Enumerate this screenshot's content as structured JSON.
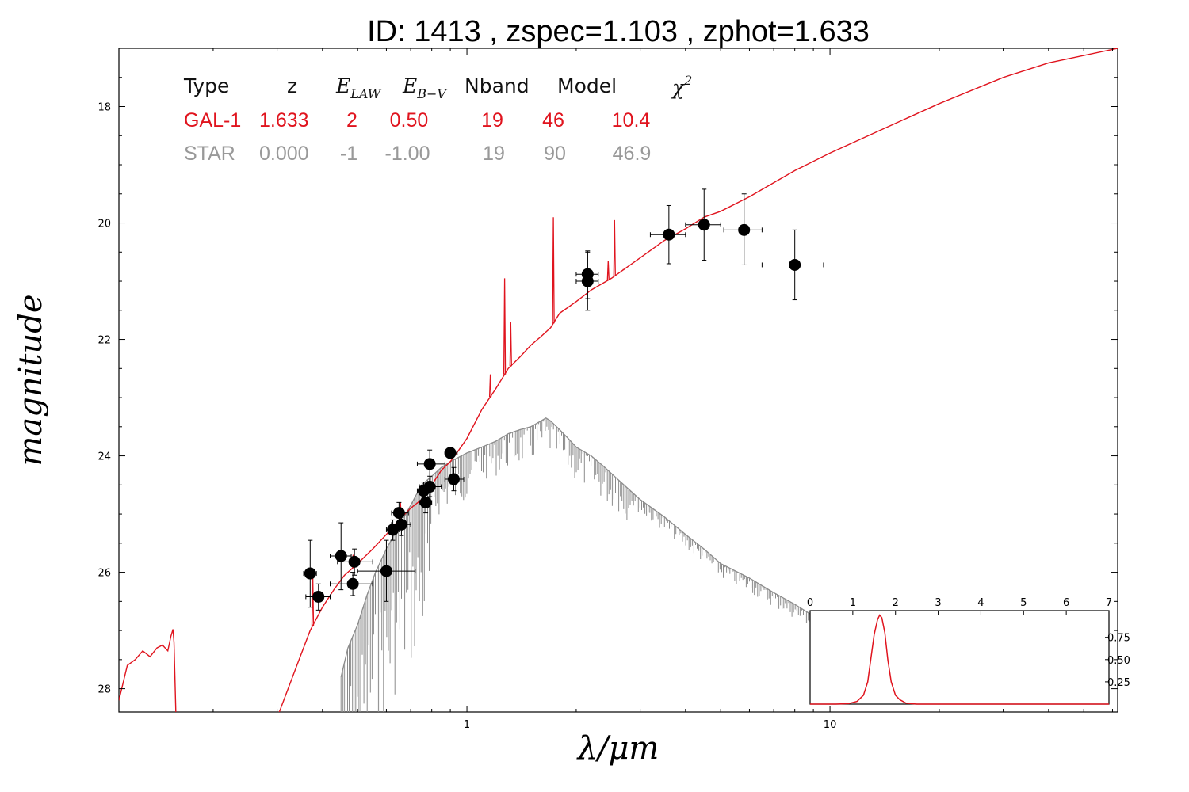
{
  "chart_data": {
    "type": "scatter",
    "title": "ID:  1413  , zspec=1.103 , zphot=1.633",
    "xlabel": "λ/μm",
    "ylabel": "magnitude",
    "xscale": "log",
    "xlim": [
      0.11,
      62
    ],
    "ylim": [
      28.4,
      17.0
    ],
    "y_inverted": true,
    "x_ticks": [
      "1",
      "10"
    ],
    "y_ticks": [
      "18",
      "20",
      "22",
      "24",
      "26",
      "28"
    ],
    "colors": {
      "galaxy": "#e0141e",
      "star": "#8c8c8c",
      "points": "#000000"
    },
    "fit_table": {
      "headers": {
        "type": "Type",
        "z": "z",
        "elaw_base": "E",
        "elaw_sub": "LAW",
        "ebv_base": "E",
        "ebv_sub": "B−V",
        "nband": "Nband",
        "model": "Model",
        "chi_base": "χ",
        "chi_sup": "2"
      },
      "rows": [
        {
          "type": "GAL-1",
          "z": "1.633",
          "elaw": "2",
          "ebv": "0.50",
          "nband": "19",
          "model": "46",
          "chi2": "10.4",
          "color": "#e0141e"
        },
        {
          "type": "STAR",
          "z": "0.000",
          "elaw": "-1",
          "ebv": "-1.00",
          "nband": "19",
          "model": "90",
          "chi2": "46.9",
          "color": "#999999"
        }
      ]
    },
    "photometry": [
      {
        "x": 0.37,
        "y": 26.02,
        "xerr": [
          0.355,
          0.385
        ],
        "yerr": [
          25.45,
          26.6
        ]
      },
      {
        "x": 0.39,
        "y": 26.42,
        "xerr": [
          0.36,
          0.42
        ],
        "yerr": [
          26.2,
          26.65
        ]
      },
      {
        "x": 0.45,
        "y": 25.72,
        "xerr": [
          0.42,
          0.48
        ],
        "yerr": [
          25.15,
          26.3
        ]
      },
      {
        "x": 0.49,
        "y": 25.82,
        "xerr": [
          0.44,
          0.55
        ],
        "yerr": [
          25.6,
          26.05
        ]
      },
      {
        "x": 0.485,
        "y": 26.2,
        "xerr": [
          0.42,
          0.55
        ],
        "yerr": [
          26.0,
          26.4
        ]
      },
      {
        "x": 0.6,
        "y": 25.98,
        "xerr": [
          0.5,
          0.72
        ],
        "yerr": [
          25.45,
          26.5
        ]
      },
      {
        "x": 0.625,
        "y": 25.27,
        "xerr": [
          0.6,
          0.65
        ],
        "yerr": [
          25.1,
          25.45
        ]
      },
      {
        "x": 0.65,
        "y": 24.98,
        "xerr": [
          0.62,
          0.69
        ],
        "yerr": [
          24.8,
          25.15
        ]
      },
      {
        "x": 0.66,
        "y": 25.18,
        "xerr": [
          0.62,
          0.7
        ],
        "yerr": [
          25.0,
          25.37
        ]
      },
      {
        "x": 0.76,
        "y": 24.6,
        "xerr": [
          0.73,
          0.79
        ],
        "yerr": [
          24.45,
          24.75
        ]
      },
      {
        "x": 0.77,
        "y": 24.8,
        "xerr": [
          0.74,
          0.8
        ],
        "yerr": [
          24.62,
          24.98
        ]
      },
      {
        "x": 0.79,
        "y": 24.14,
        "xerr": [
          0.73,
          0.87
        ],
        "yerr": [
          23.9,
          24.38
        ]
      },
      {
        "x": 0.79,
        "y": 24.53,
        "xerr": [
          0.74,
          0.85
        ],
        "yerr": [
          24.35,
          24.7
        ]
      },
      {
        "x": 0.9,
        "y": 23.95,
        "xerr": [
          0.87,
          0.94
        ],
        "yerr": [
          23.85,
          24.05
        ]
      },
      {
        "x": 0.92,
        "y": 24.4,
        "xerr": [
          0.87,
          0.98
        ],
        "yerr": [
          24.2,
          24.6
        ]
      },
      {
        "x": 2.15,
        "y": 20.88,
        "xerr": [
          2.0,
          2.3
        ],
        "yerr": [
          20.48,
          21.3
        ]
      },
      {
        "x": 2.15,
        "y": 21.0,
        "xerr": [
          2.0,
          2.3
        ],
        "yerr": [
          20.5,
          21.5
        ]
      },
      {
        "x": 3.6,
        "y": 20.2,
        "xerr": [
          3.2,
          4.0
        ],
        "yerr": [
          19.7,
          20.7
        ]
      },
      {
        "x": 4.5,
        "y": 20.03,
        "xerr": [
          4.0,
          5.0
        ],
        "yerr": [
          19.42,
          20.64
        ]
      },
      {
        "x": 5.8,
        "y": 20.12,
        "xerr": [
          5.1,
          6.5
        ],
        "yerr": [
          19.5,
          20.72
        ]
      },
      {
        "x": 8.0,
        "y": 20.72,
        "xerr": [
          6.5,
          9.6
        ],
        "yerr": [
          20.12,
          21.32
        ]
      }
    ],
    "galaxy_template": {
      "name": "GAL-1",
      "x": [
        0.11,
        0.116,
        0.122,
        0.128,
        0.134,
        0.14,
        0.145,
        0.15,
        0.153,
        0.155,
        0.156,
        0.158,
        0.3,
        0.34,
        0.37,
        0.4,
        0.43,
        0.46,
        0.5,
        0.55,
        0.6,
        0.65,
        0.7,
        0.75,
        0.8,
        0.85,
        0.9,
        0.95,
        1.0,
        1.1,
        1.2,
        1.3,
        1.4,
        1.5,
        1.6,
        1.7,
        1.8,
        2.0,
        2.2,
        2.5,
        3.0,
        3.5,
        4.0,
        4.5,
        5.0,
        6.0,
        8.0,
        10,
        15,
        20,
        30,
        40,
        62
      ],
      "y": [
        28.2,
        27.6,
        27.5,
        27.35,
        27.45,
        27.3,
        27.25,
        27.35,
        27.1,
        26.98,
        27.2,
        28.5,
        28.5,
        27.6,
        27.0,
        26.6,
        26.3,
        26.05,
        25.85,
        25.6,
        25.35,
        25.1,
        24.9,
        24.75,
        24.5,
        24.25,
        24.1,
        23.9,
        23.7,
        23.2,
        22.85,
        22.5,
        22.3,
        22.1,
        21.95,
        21.8,
        21.55,
        21.35,
        21.15,
        20.95,
        20.6,
        20.3,
        20.1,
        19.9,
        19.8,
        19.55,
        19.1,
        18.8,
        18.3,
        17.95,
        17.5,
        17.25,
        17.0
      ],
      "emission_lines": [
        {
          "x": 0.376,
          "peak": 25.95
        },
        {
          "x": 0.486,
          "peak": 25.7
        },
        {
          "x": 0.5,
          "peak": 25.75
        },
        {
          "x": 0.656,
          "peak": 24.8
        },
        {
          "x": 1.16,
          "peak": 22.6
        },
        {
          "x": 1.27,
          "peak": 20.95
        },
        {
          "x": 1.32,
          "peak": 21.7
        },
        {
          "x": 1.73,
          "peak": 19.9
        },
        {
          "x": 2.45,
          "peak": 20.65
        },
        {
          "x": 2.55,
          "peak": 19.95
        },
        {
          "x": 2.7,
          "peak": 20.8
        }
      ]
    },
    "star_template": {
      "name": "STAR",
      "x": [
        0.45,
        0.47,
        0.5,
        0.53,
        0.56,
        0.6,
        0.65,
        0.7,
        0.75,
        0.8,
        0.85,
        0.9,
        1.0,
        1.1,
        1.2,
        1.3,
        1.4,
        1.5,
        1.6,
        1.65,
        1.7,
        1.8,
        1.9,
        2.0,
        2.2,
        2.4,
        2.6,
        3.0,
        3.5,
        4.0,
        4.5,
        5.0,
        6.0,
        7.0,
        8.0,
        9.0,
        10,
        11
      ],
      "y": [
        27.8,
        27.3,
        26.9,
        26.4,
        26.0,
        25.6,
        25.2,
        24.85,
        24.5,
        24.35,
        24.2,
        24.1,
        23.95,
        23.85,
        23.75,
        23.62,
        23.55,
        23.5,
        23.4,
        23.35,
        23.4,
        23.55,
        23.7,
        23.85,
        24.0,
        24.2,
        24.4,
        24.75,
        25.05,
        25.35,
        25.6,
        25.85,
        26.1,
        26.35,
        26.55,
        26.75,
        26.95,
        27.15
      ]
    },
    "inset": {
      "type": "line",
      "description_free": true,
      "xlim": [
        0,
        7
      ],
      "ylim": [
        0,
        1.05
      ],
      "x_ticks": [
        "0",
        "1",
        "2",
        "3",
        "4",
        "5",
        "6",
        "7"
      ],
      "y_ticks": [
        "0.25",
        "0.50",
        "0.75"
      ],
      "x": [
        0,
        0.6,
        0.9,
        1.1,
        1.25,
        1.35,
        1.42,
        1.5,
        1.58,
        1.63,
        1.68,
        1.75,
        1.82,
        1.9,
        2.0,
        2.1,
        2.25,
        2.5,
        7
      ],
      "y": [
        0.0,
        0.0,
        0.005,
        0.03,
        0.1,
        0.25,
        0.5,
        0.78,
        0.95,
        1.0,
        0.97,
        0.8,
        0.5,
        0.25,
        0.1,
        0.05,
        0.01,
        0.0,
        0.0
      ]
    }
  }
}
